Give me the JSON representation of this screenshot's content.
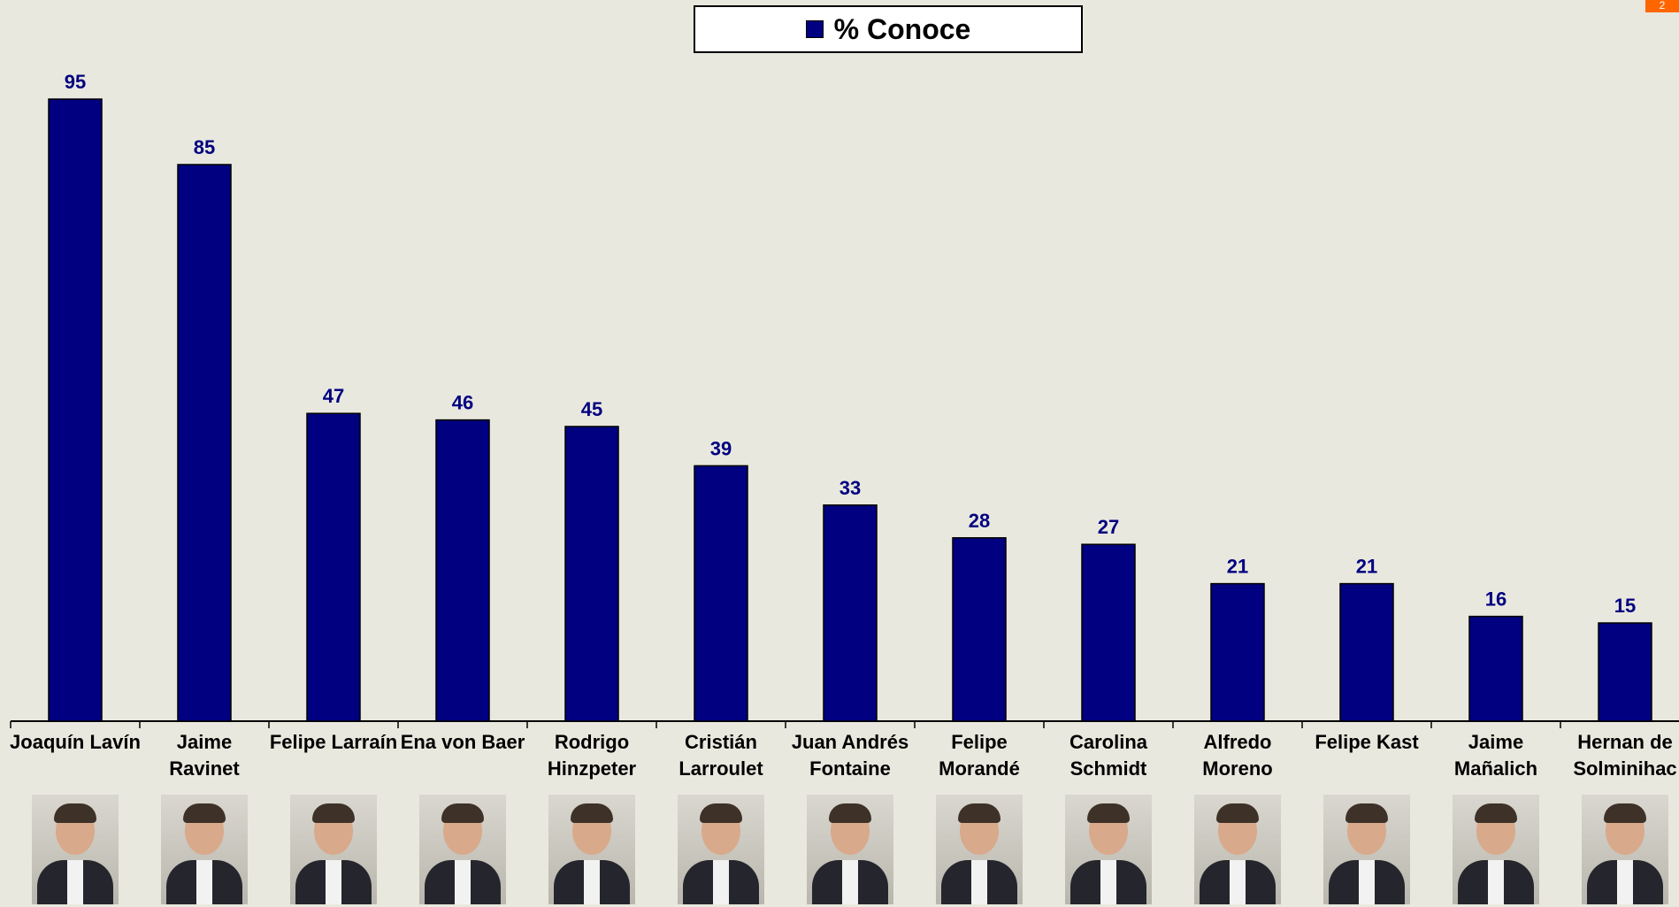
{
  "legend": {
    "label": "% Conoce",
    "color": "#000080"
  },
  "page_badge": "2",
  "chart_data": {
    "type": "bar",
    "categories": [
      "Joaquín Lavín",
      "Jaime\nRavinet",
      "Felipe Larraín",
      "Ena von Baer",
      "Rodrigo\nHinzpeter",
      "Cristián\nLarroulet",
      "Juan Andrés\nFontaine",
      "Felipe\nMorandé",
      "Carolina\nSchmidt",
      "Alfredo\nMoreno",
      "Felipe Kast",
      "Jaime\nMañalich",
      "Hernan de\nSolminihac"
    ],
    "series": [
      {
        "name": "% Conoce",
        "values": [
          95,
          85,
          47,
          46,
          45,
          39,
          33,
          28,
          27,
          21,
          21,
          16,
          15
        ]
      }
    ],
    "ylim": [
      0,
      100
    ],
    "grid": false,
    "legend": "top-center",
    "bar_color": "#000080",
    "label_color": "#000080"
  }
}
